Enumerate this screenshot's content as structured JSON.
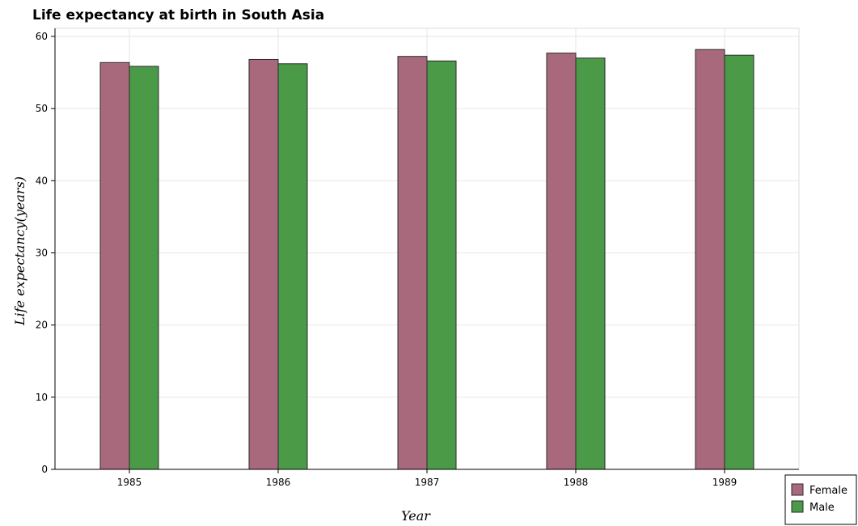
{
  "chart_data": {
    "type": "bar",
    "title": "Life expectancy at birth in South Asia",
    "xlabel": "Year",
    "ylabel": "Life expectancy(years)",
    "categories": [
      "1985",
      "1986",
      "1987",
      "1988",
      "1989"
    ],
    "series": [
      {
        "name": "Female",
        "color": "#a9697c",
        "values": [
          56.38,
          56.81,
          57.23,
          57.69,
          58.18
        ]
      },
      {
        "name": "Male",
        "color": "#4a9a48",
        "values": [
          55.85,
          56.21,
          56.6,
          57.0,
          57.4
        ]
      }
    ],
    "ylim": [
      0,
      60
    ],
    "yticks": [
      "0",
      "10",
      "20",
      "30",
      "40",
      "50",
      "60"
    ],
    "grid": true,
    "legend_position": "bottom-right"
  }
}
